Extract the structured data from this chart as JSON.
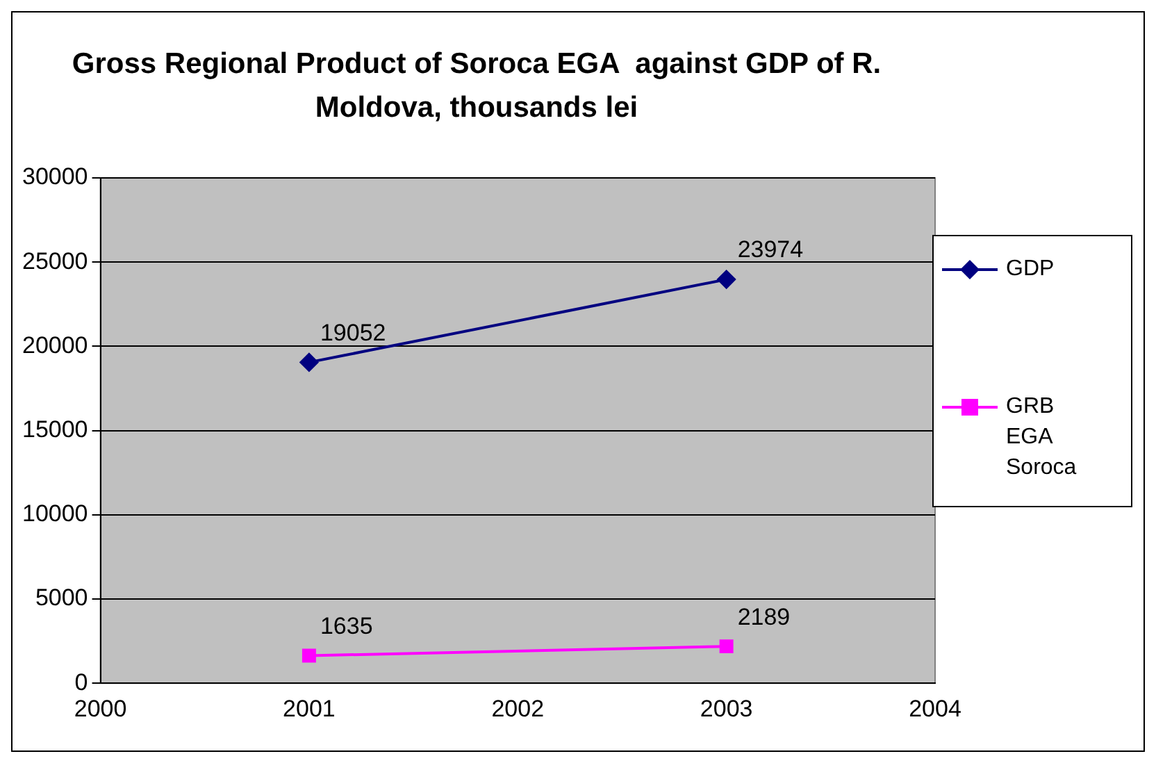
{
  "chart_data": {
    "type": "line",
    "title": "Gross Regional Product of Soroca EGA  against GDP of R. Moldova, thousands lei",
    "x": [
      2001,
      2003
    ],
    "series": [
      {
        "name": "GDP",
        "color": "#000080",
        "values": [
          19052,
          23974
        ],
        "marker": "diamond"
      },
      {
        "name": "GRB EGA Soroca",
        "color": "#ff00ff",
        "values": [
          1635,
          2189
        ],
        "marker": "square"
      }
    ],
    "xlim": [
      2000,
      2004
    ],
    "xticks": [
      2000,
      2001,
      2002,
      2003,
      2004
    ],
    "ylim": [
      0,
      30000
    ],
    "yticks": [
      0,
      5000,
      10000,
      15000,
      20000,
      25000,
      30000
    ],
    "grid": "y",
    "legend": "right",
    "data_labels": true
  }
}
